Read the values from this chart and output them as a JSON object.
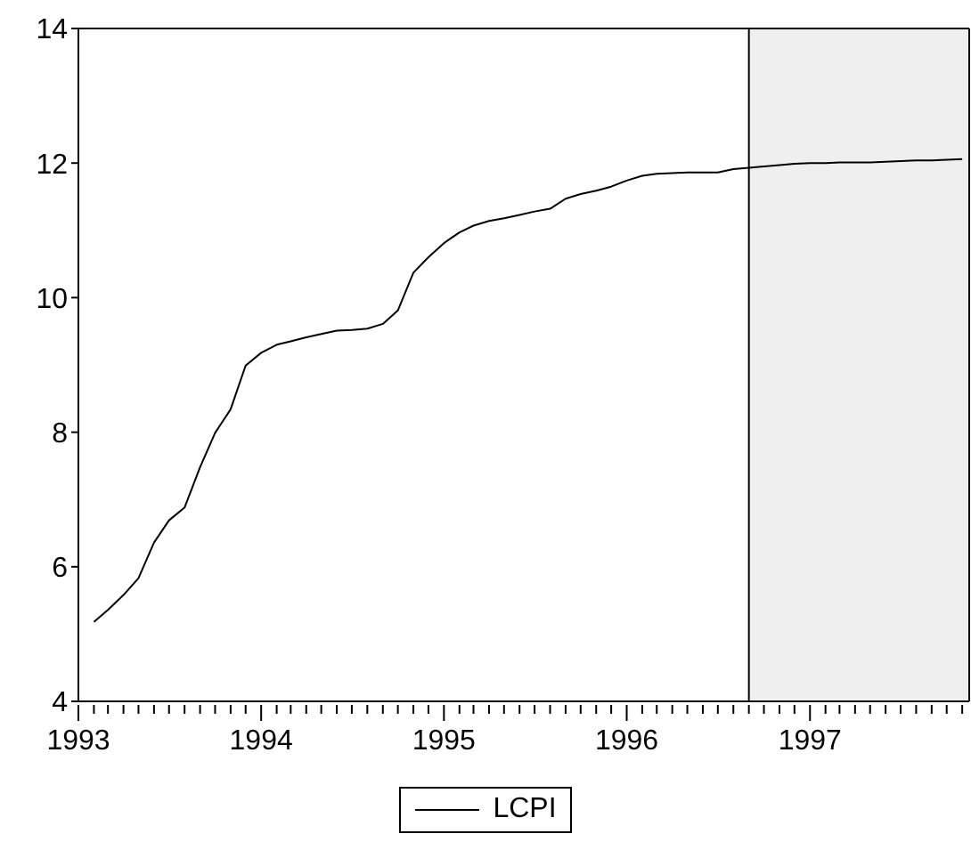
{
  "chart_data": {
    "type": "line",
    "x": [
      "1993-02",
      "1993-03",
      "1993-04",
      "1993-05",
      "1993-06",
      "1993-07",
      "1993-08",
      "1993-09",
      "1993-10",
      "1993-11",
      "1993-12",
      "1994-01",
      "1994-02",
      "1994-03",
      "1994-04",
      "1994-05",
      "1994-06",
      "1994-07",
      "1994-08",
      "1994-09",
      "1994-10",
      "1994-11",
      "1994-12",
      "1995-01",
      "1995-02",
      "1995-03",
      "1995-04",
      "1995-05",
      "1995-06",
      "1995-07",
      "1995-08",
      "1995-09",
      "1995-10",
      "1995-11",
      "1995-12",
      "1996-01",
      "1996-02",
      "1996-03",
      "1996-04",
      "1996-05",
      "1996-06",
      "1996-07",
      "1996-08",
      "1996-09",
      "1996-10",
      "1996-11",
      "1996-12",
      "1997-01",
      "1997-02",
      "1997-03",
      "1997-04",
      "1997-05",
      "1997-06",
      "1997-07",
      "1997-08",
      "1997-09",
      "1997-10",
      "1997-11"
    ],
    "series": [
      {
        "name": "LCPI",
        "color": "#000000",
        "values": [
          5.18,
          5.36,
          5.58,
          5.83,
          6.36,
          6.69,
          6.88,
          7.48,
          7.99,
          8.34,
          8.99,
          9.18,
          9.3,
          9.35,
          9.41,
          9.46,
          9.51,
          9.52,
          9.54,
          9.61,
          9.81,
          10.37,
          10.6,
          10.81,
          10.97,
          11.07,
          11.14,
          11.18,
          11.23,
          11.28,
          11.32,
          11.47,
          11.54,
          11.59,
          11.65,
          11.74,
          11.81,
          11.84,
          11.85,
          11.86,
          11.86,
          11.86,
          11.91,
          11.93,
          11.95,
          11.97,
          11.99,
          12.0,
          12.0,
          12.01,
          12.01,
          12.01,
          12.02,
          12.03,
          12.04,
          12.04,
          12.05,
          12.06
        ]
      }
    ],
    "xlim": [
      "1993-01",
      "1997-11-15"
    ],
    "xticks": [
      {
        "value": "1993-01",
        "label": "1993"
      },
      {
        "value": "1993-02",
        "label": null
      },
      {
        "value": "1993-03",
        "label": null
      },
      {
        "value": "1993-04",
        "label": null
      },
      {
        "value": "1993-05",
        "label": null
      },
      {
        "value": "1993-06",
        "label": null
      },
      {
        "value": "1993-07",
        "label": null
      },
      {
        "value": "1993-08",
        "label": null
      },
      {
        "value": "1993-09",
        "label": null
      },
      {
        "value": "1993-10",
        "label": null
      },
      {
        "value": "1993-11",
        "label": null
      },
      {
        "value": "1993-12",
        "label": null
      },
      {
        "value": "1994-01",
        "label": "1994"
      },
      {
        "value": "1994-02",
        "label": null
      },
      {
        "value": "1994-03",
        "label": null
      },
      {
        "value": "1994-04",
        "label": null
      },
      {
        "value": "1994-05",
        "label": null
      },
      {
        "value": "1994-06",
        "label": null
      },
      {
        "value": "1994-07",
        "label": null
      },
      {
        "value": "1994-08",
        "label": null
      },
      {
        "value": "1994-09",
        "label": null
      },
      {
        "value": "1994-10",
        "label": null
      },
      {
        "value": "1994-11",
        "label": null
      },
      {
        "value": "1994-12",
        "label": null
      },
      {
        "value": "1995-01",
        "label": "1995"
      },
      {
        "value": "1995-02",
        "label": null
      },
      {
        "value": "1995-03",
        "label": null
      },
      {
        "value": "1995-04",
        "label": null
      },
      {
        "value": "1995-05",
        "label": null
      },
      {
        "value": "1995-06",
        "label": null
      },
      {
        "value": "1995-07",
        "label": null
      },
      {
        "value": "1995-08",
        "label": null
      },
      {
        "value": "1995-09",
        "label": null
      },
      {
        "value": "1995-10",
        "label": null
      },
      {
        "value": "1995-11",
        "label": null
      },
      {
        "value": "1995-12",
        "label": null
      },
      {
        "value": "1996-01",
        "label": "1996"
      },
      {
        "value": "1996-02",
        "label": null
      },
      {
        "value": "1996-03",
        "label": null
      },
      {
        "value": "1996-04",
        "label": null
      },
      {
        "value": "1996-05",
        "label": null
      },
      {
        "value": "1996-06",
        "label": null
      },
      {
        "value": "1996-07",
        "label": null
      },
      {
        "value": "1996-08",
        "label": null
      },
      {
        "value": "1996-09",
        "label": null
      },
      {
        "value": "1996-10",
        "label": null
      },
      {
        "value": "1996-11",
        "label": null
      },
      {
        "value": "1996-12",
        "label": null
      },
      {
        "value": "1997-01",
        "label": "1997"
      },
      {
        "value": "1997-02",
        "label": null
      },
      {
        "value": "1997-03",
        "label": null
      },
      {
        "value": "1997-04",
        "label": null
      },
      {
        "value": "1997-05",
        "label": null
      },
      {
        "value": "1997-06",
        "label": null
      },
      {
        "value": "1997-07",
        "label": null
      },
      {
        "value": "1997-08",
        "label": null
      },
      {
        "value": "1997-09",
        "label": null
      },
      {
        "value": "1997-10",
        "label": null
      },
      {
        "value": "1997-11",
        "label": null
      }
    ],
    "ylim": [
      4,
      14
    ],
    "yticks": [
      4,
      6,
      8,
      10,
      12,
      14
    ],
    "bands": [
      {
        "axis": "x",
        "from": "1996-09",
        "to": "1997-11-15",
        "color": "#efefef"
      }
    ],
    "legend": "bottom",
    "marker": "none",
    "line_style": "solid"
  }
}
